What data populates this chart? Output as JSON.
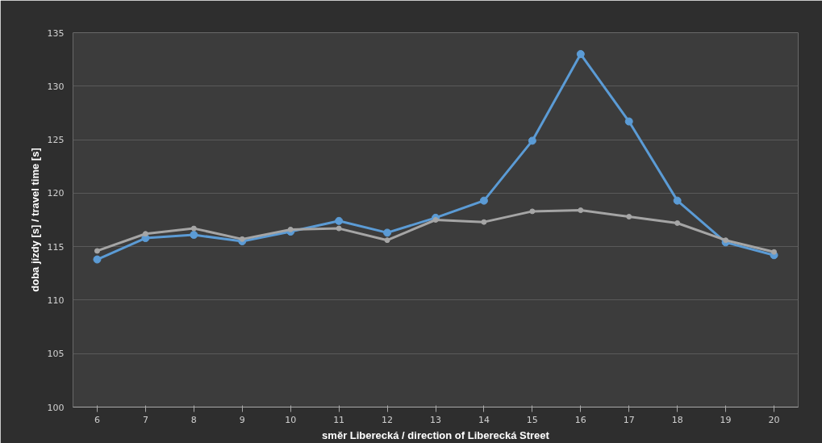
{
  "chart_data": {
    "type": "line",
    "xlabel": "směr Liberecká / direction of Liberecká Street",
    "ylabel": "doba jízdy [s] / travel time [s]",
    "categories": [
      "6",
      "7",
      "8",
      "9",
      "10",
      "11",
      "12",
      "13",
      "14",
      "15",
      "16",
      "17",
      "18",
      "19",
      "20"
    ],
    "series": [
      {
        "color": "#5b9bd5",
        "values": [
          113.8,
          115.8,
          116.1,
          115.5,
          116.4,
          117.4,
          116.3,
          117.7,
          119.3,
          124.9,
          133.0,
          126.7,
          119.3,
          115.4,
          114.2
        ]
      },
      {
        "color": "#a5a5a5",
        "values": [
          114.6,
          116.2,
          116.7,
          115.7,
          116.6,
          116.7,
          115.6,
          117.5,
          117.3,
          118.3,
          118.4,
          117.8,
          117.2,
          115.6,
          114.5
        ]
      }
    ],
    "ylim": [
      100,
      135
    ],
    "yticks": [
      100,
      105,
      110,
      115,
      120,
      125,
      130,
      135
    ],
    "grid": "y",
    "marker": "circle",
    "line_style": "solid"
  }
}
